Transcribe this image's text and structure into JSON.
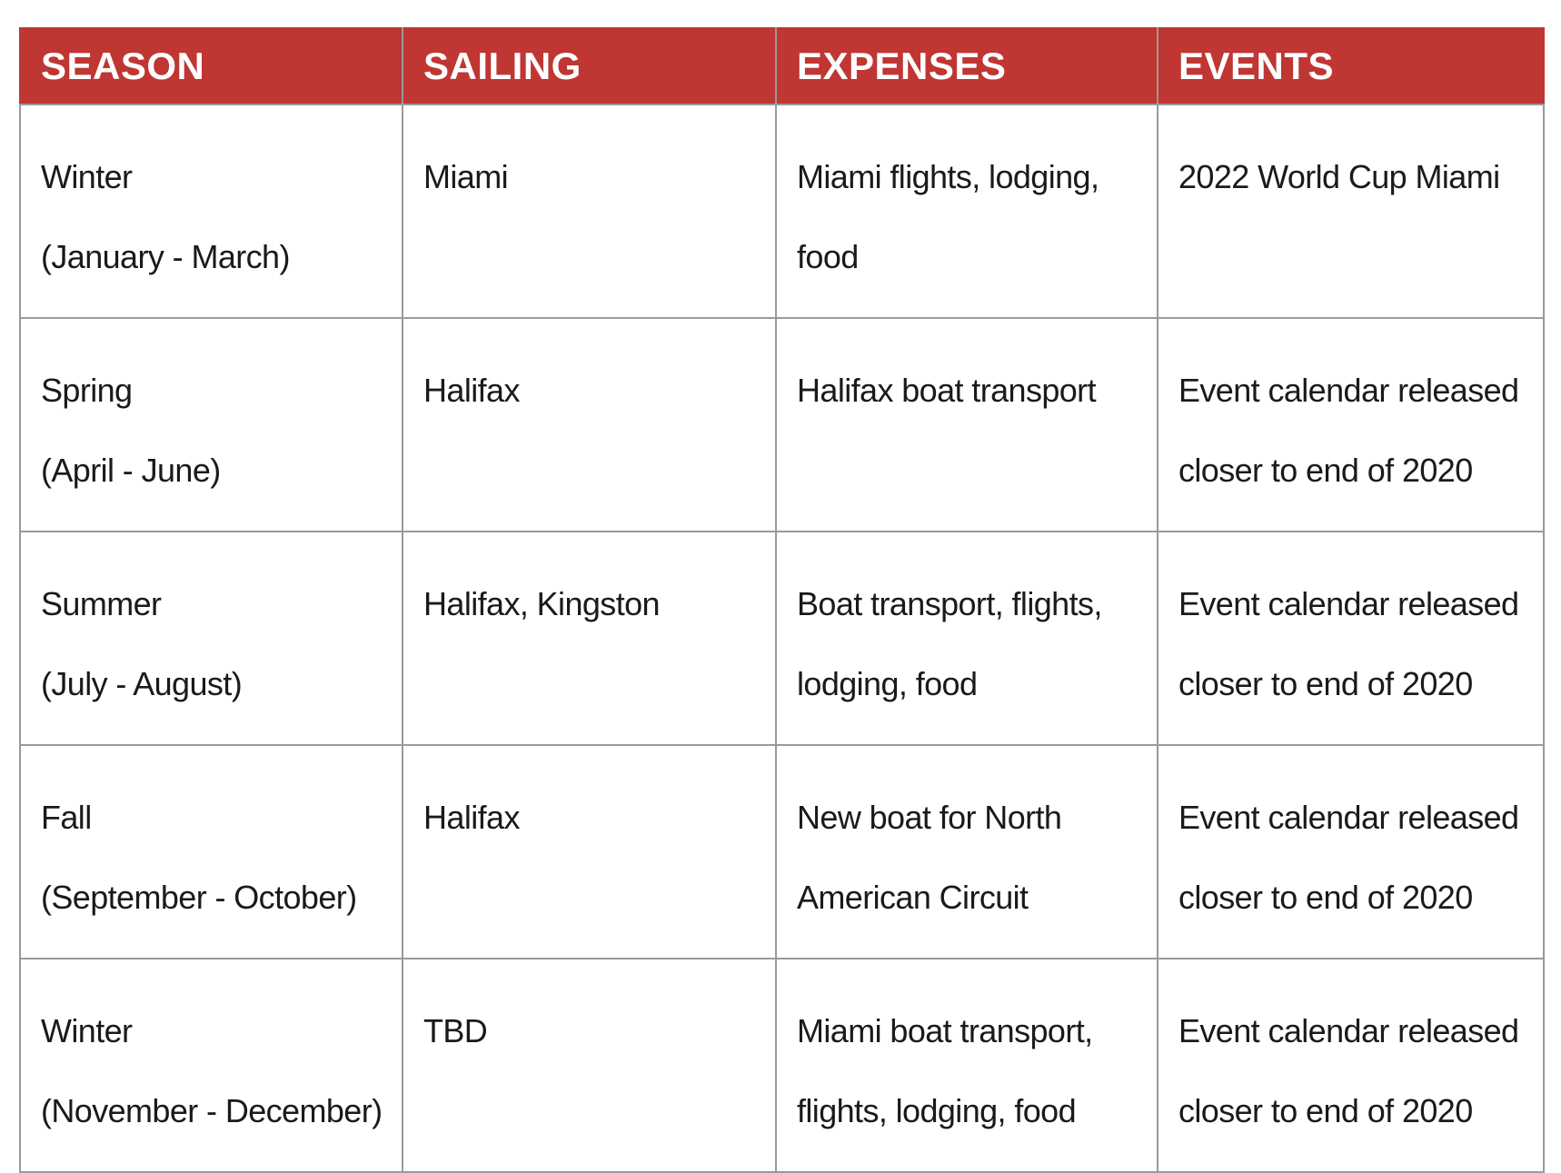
{
  "table": {
    "headers": [
      "SEASON",
      "SAILING",
      "EXPENSES",
      "EVENTS"
    ],
    "rows": [
      {
        "season": [
          "Winter",
          "(January - March)"
        ],
        "sailing": "Miami",
        "expenses": [
          "Miami flights, lodging,",
          "food"
        ],
        "events": [
          "2022 World Cup Miami"
        ]
      },
      {
        "season": [
          "Spring",
          "(April - June)"
        ],
        "sailing": "Halifax",
        "expenses": [
          "Halifax boat transport"
        ],
        "events": [
          "Event calendar released",
          "closer to end of 2020"
        ]
      },
      {
        "season": [
          "Summer",
          "(July - August)"
        ],
        "sailing": "Halifax, Kingston",
        "expenses": [
          "Boat transport, flights,",
          "lodging, food"
        ],
        "events": [
          "Event calendar released",
          "closer to end of 2020"
        ]
      },
      {
        "season": [
          "Fall",
          "(September - October)"
        ],
        "sailing": "Halifax",
        "expenses": [
          "New boat for North",
          "American Circuit"
        ],
        "events": [
          "Event calendar released",
          "closer to end of 2020"
        ]
      },
      {
        "season": [
          "Winter",
          "(November - December)"
        ],
        "sailing": "TBD",
        "expenses": [
          "Miami boat transport,",
          "flights, lodging, food"
        ],
        "events": [
          "Event calendar released",
          "closer to end of 2020"
        ]
      }
    ]
  },
  "colors": {
    "header_bg": "#bf3633",
    "header_text": "#ffffff",
    "border": "#9a9a9a",
    "body_text": "#1a1a1a"
  }
}
